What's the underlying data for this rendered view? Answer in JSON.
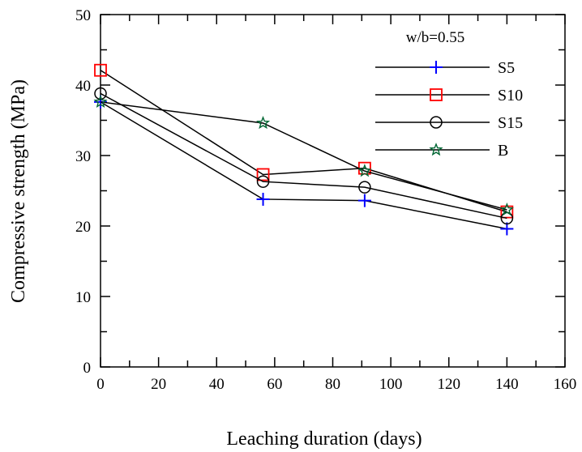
{
  "chart_data": {
    "type": "line",
    "title": "",
    "xlabel": "Leaching duration (days)",
    "ylabel": "Compressive strength (MPa)",
    "xlim": [
      0,
      160
    ],
    "ylim": [
      0,
      50
    ],
    "xticks": [
      0,
      20,
      40,
      60,
      80,
      100,
      120,
      140,
      160
    ],
    "yticks": [
      0,
      10,
      20,
      30,
      40,
      50
    ],
    "grid": false,
    "legend_title": "w/b=0.55",
    "legend_position": "top-right",
    "x": [
      0,
      56,
      91,
      140
    ],
    "series": [
      {
        "name": "S5",
        "marker": "plus",
        "color": "#0000ff",
        "values": [
          37.6,
          23.8,
          23.6,
          19.6
        ]
      },
      {
        "name": "S10",
        "marker": "square",
        "color": "#ff0000",
        "values": [
          42.1,
          27.3,
          28.2,
          22.0
        ]
      },
      {
        "name": "S15",
        "marker": "circle",
        "color": "#000000",
        "values": [
          38.8,
          26.3,
          25.5,
          21.1
        ]
      },
      {
        "name": "B",
        "marker": "star",
        "color": "#006633",
        "values": [
          37.6,
          34.6,
          27.8,
          22.3
        ]
      }
    ]
  }
}
